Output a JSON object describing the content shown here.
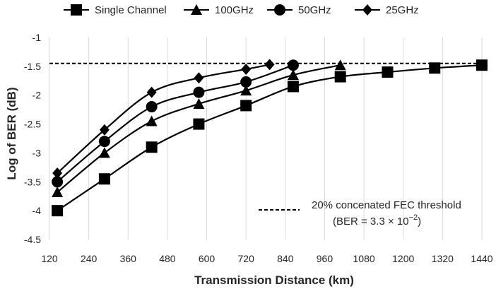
{
  "chart_data": {
    "type": "line",
    "title": "",
    "xlabel": "Transmission Distance (km)",
    "ylabel": "Log of BER (dB)",
    "xlim": [
      120,
      1440
    ],
    "ylim": [
      -4.5,
      -1
    ],
    "xticks": [
      120,
      240,
      360,
      480,
      600,
      720,
      840,
      960,
      1080,
      1200,
      1320,
      1440
    ],
    "yticks": [
      -1,
      -1.5,
      -2,
      -2.5,
      -3,
      -3.5,
      -4,
      -4.5
    ],
    "grid": "vertical",
    "legend": "top",
    "series": [
      {
        "name": "Single Channel",
        "marker": "square",
        "color": "#000000",
        "x": [
          144,
          288,
          432,
          576,
          720,
          864,
          1008,
          1152,
          1296,
          1440
        ],
        "y": [
          -4.0,
          -3.45,
          -2.9,
          -2.5,
          -2.18,
          -1.85,
          -1.68,
          -1.6,
          -1.53,
          -1.48
        ]
      },
      {
        "name": "100GHz",
        "marker": "triangle",
        "color": "#000000",
        "x": [
          144,
          288,
          432,
          576,
          720,
          864,
          1008
        ],
        "y": [
          -3.68,
          -3.0,
          -2.45,
          -2.15,
          -1.92,
          -1.65,
          -1.48
        ]
      },
      {
        "name": "50GHz",
        "marker": "circle",
        "color": "#000000",
        "x": [
          144,
          288,
          432,
          576,
          720,
          864
        ],
        "y": [
          -3.5,
          -2.8,
          -2.2,
          -1.95,
          -1.77,
          -1.48
        ]
      },
      {
        "name": "25GHz",
        "marker": "diamond",
        "color": "#000000",
        "x": [
          144,
          288,
          432,
          576,
          720,
          792
        ],
        "y": [
          -3.35,
          -2.6,
          -1.95,
          -1.7,
          -1.55,
          -1.47
        ]
      }
    ],
    "threshold": {
      "y": -1.45,
      "style": "dashed",
      "label_line1": "20% concenated FEC threshold",
      "label_line2_prefix": "(BER = 3.3 × 10",
      "label_line2_exp": "−2",
      "label_line2_suffix": ")"
    }
  }
}
